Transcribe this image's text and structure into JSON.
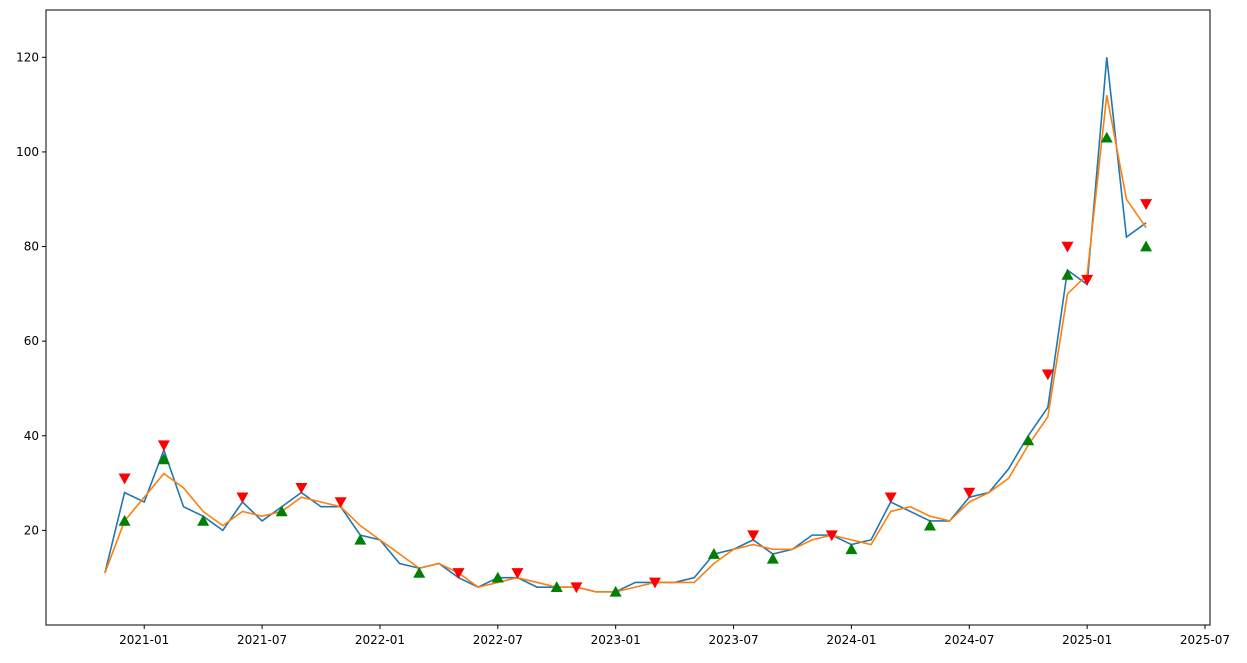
{
  "chart_data": {
    "type": "line",
    "x": [
      "2020-11",
      "2020-12",
      "2021-01",
      "2021-02",
      "2021-03",
      "2021-04",
      "2021-05",
      "2021-06",
      "2021-07",
      "2021-08",
      "2021-09",
      "2021-10",
      "2021-11",
      "2021-12",
      "2022-01",
      "2022-02",
      "2022-03",
      "2022-04",
      "2022-05",
      "2022-06",
      "2022-07",
      "2022-08",
      "2022-09",
      "2022-10",
      "2022-11",
      "2022-12",
      "2023-01",
      "2023-02",
      "2023-03",
      "2023-04",
      "2023-05",
      "2023-06",
      "2023-07",
      "2023-08",
      "2023-09",
      "2023-10",
      "2023-11",
      "2023-12",
      "2024-01",
      "2024-02",
      "2024-03",
      "2024-04",
      "2024-05",
      "2024-06",
      "2024-07",
      "2024-08",
      "2024-09",
      "2024-10",
      "2024-11",
      "2024-12",
      "2025-01",
      "2025-02",
      "2025-03",
      "2025-04"
    ],
    "series": [
      {
        "style": "line",
        "color": "#1f77b4",
        "values": [
          11,
          28,
          26,
          37,
          25,
          23,
          20,
          26,
          22,
          25,
          28,
          25,
          25,
          19,
          18,
          13,
          12,
          13,
          10,
          8,
          10,
          10,
          8,
          8,
          8,
          7,
          7,
          9,
          9,
          9,
          10,
          15,
          16,
          18,
          15,
          16,
          19,
          19,
          17,
          18,
          26,
          24,
          22,
          22,
          27,
          28,
          33,
          40,
          46,
          75,
          72,
          120,
          82,
          85
        ]
      },
      {
        "style": "line",
        "color": "#ff7f0e",
        "values": [
          11,
          22,
          27,
          32,
          29,
          24,
          21,
          24,
          23,
          24,
          27,
          26,
          25,
          21,
          18,
          15,
          12,
          13,
          11,
          8,
          9,
          10,
          9,
          8,
          8,
          7,
          7,
          8,
          9,
          9,
          9,
          13,
          16,
          17,
          16,
          16,
          18,
          19,
          18,
          17,
          24,
          25,
          23,
          22,
          26,
          28,
          31,
          38,
          44,
          70,
          74,
          112,
          90,
          84
        ]
      },
      {
        "style": "marker-up",
        "color": "#008000",
        "values": [
          null,
          22,
          null,
          35,
          null,
          22,
          null,
          null,
          null,
          24,
          null,
          null,
          null,
          18,
          null,
          null,
          11,
          null,
          null,
          null,
          10,
          null,
          null,
          8,
          null,
          null,
          7,
          null,
          null,
          null,
          null,
          15,
          null,
          null,
          14,
          null,
          null,
          null,
          16,
          null,
          null,
          null,
          21,
          null,
          null,
          null,
          null,
          39,
          null,
          74,
          null,
          103,
          null,
          80
        ]
      },
      {
        "style": "marker-down",
        "color": "#ff0000",
        "values": [
          null,
          31,
          null,
          38,
          null,
          null,
          null,
          27,
          null,
          null,
          29,
          null,
          26,
          null,
          null,
          null,
          null,
          null,
          11,
          null,
          null,
          11,
          null,
          null,
          8,
          null,
          null,
          null,
          9,
          null,
          null,
          null,
          null,
          19,
          null,
          null,
          null,
          19,
          null,
          null,
          27,
          null,
          null,
          null,
          28,
          null,
          null,
          null,
          53,
          80,
          73,
          null,
          null,
          89
        ]
      }
    ],
    "xlim": [
      "2020-08",
      "2025-07"
    ],
    "xticks": [
      "2021-01",
      "2021-07",
      "2022-01",
      "2022-07",
      "2023-01",
      "2023-07",
      "2024-01",
      "2024-07",
      "2025-01",
      "2025-07"
    ],
    "ylim": [
      0,
      130
    ],
    "yticks": [
      20,
      40,
      60,
      80,
      100,
      120
    ]
  }
}
